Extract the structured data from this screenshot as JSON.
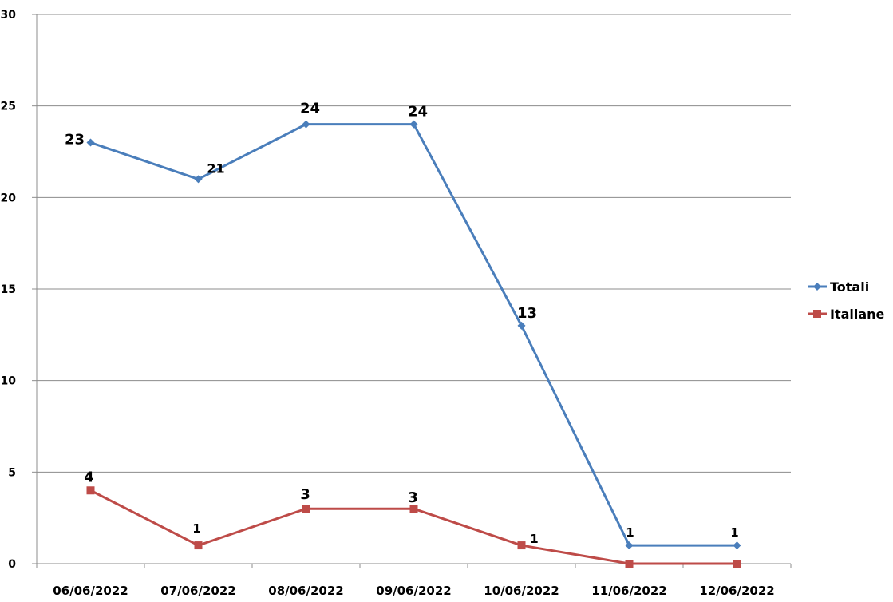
{
  "chart_data": {
    "type": "line",
    "title": "",
    "xlabel": "",
    "ylabel": "",
    "categories": [
      "06/06/2022",
      "07/06/2022",
      "08/06/2022",
      "09/06/2022",
      "10/06/2022",
      "11/06/2022",
      "12/06/2022"
    ],
    "ylim": [
      0,
      30
    ],
    "yticks": [
      "0",
      "5",
      "10",
      "15",
      "20",
      "25",
      "30"
    ],
    "grid": "horizontal",
    "legend_position": "right",
    "series": [
      {
        "name": "Totali",
        "values": [
          23,
          21,
          24,
          24,
          13,
          1,
          1
        ],
        "data_labels": [
          "23",
          "21",
          "24",
          "24",
          "13",
          "1",
          "1"
        ],
        "color": "#4A7EBB",
        "marker": "diamond"
      },
      {
        "name": "Italiane",
        "values": [
          4,
          1,
          3,
          3,
          1,
          0,
          0
        ],
        "data_labels": [
          "4",
          "1",
          "3",
          "3",
          "1",
          "",
          ""
        ],
        "color": "#BE4B48",
        "marker": "square"
      }
    ]
  }
}
